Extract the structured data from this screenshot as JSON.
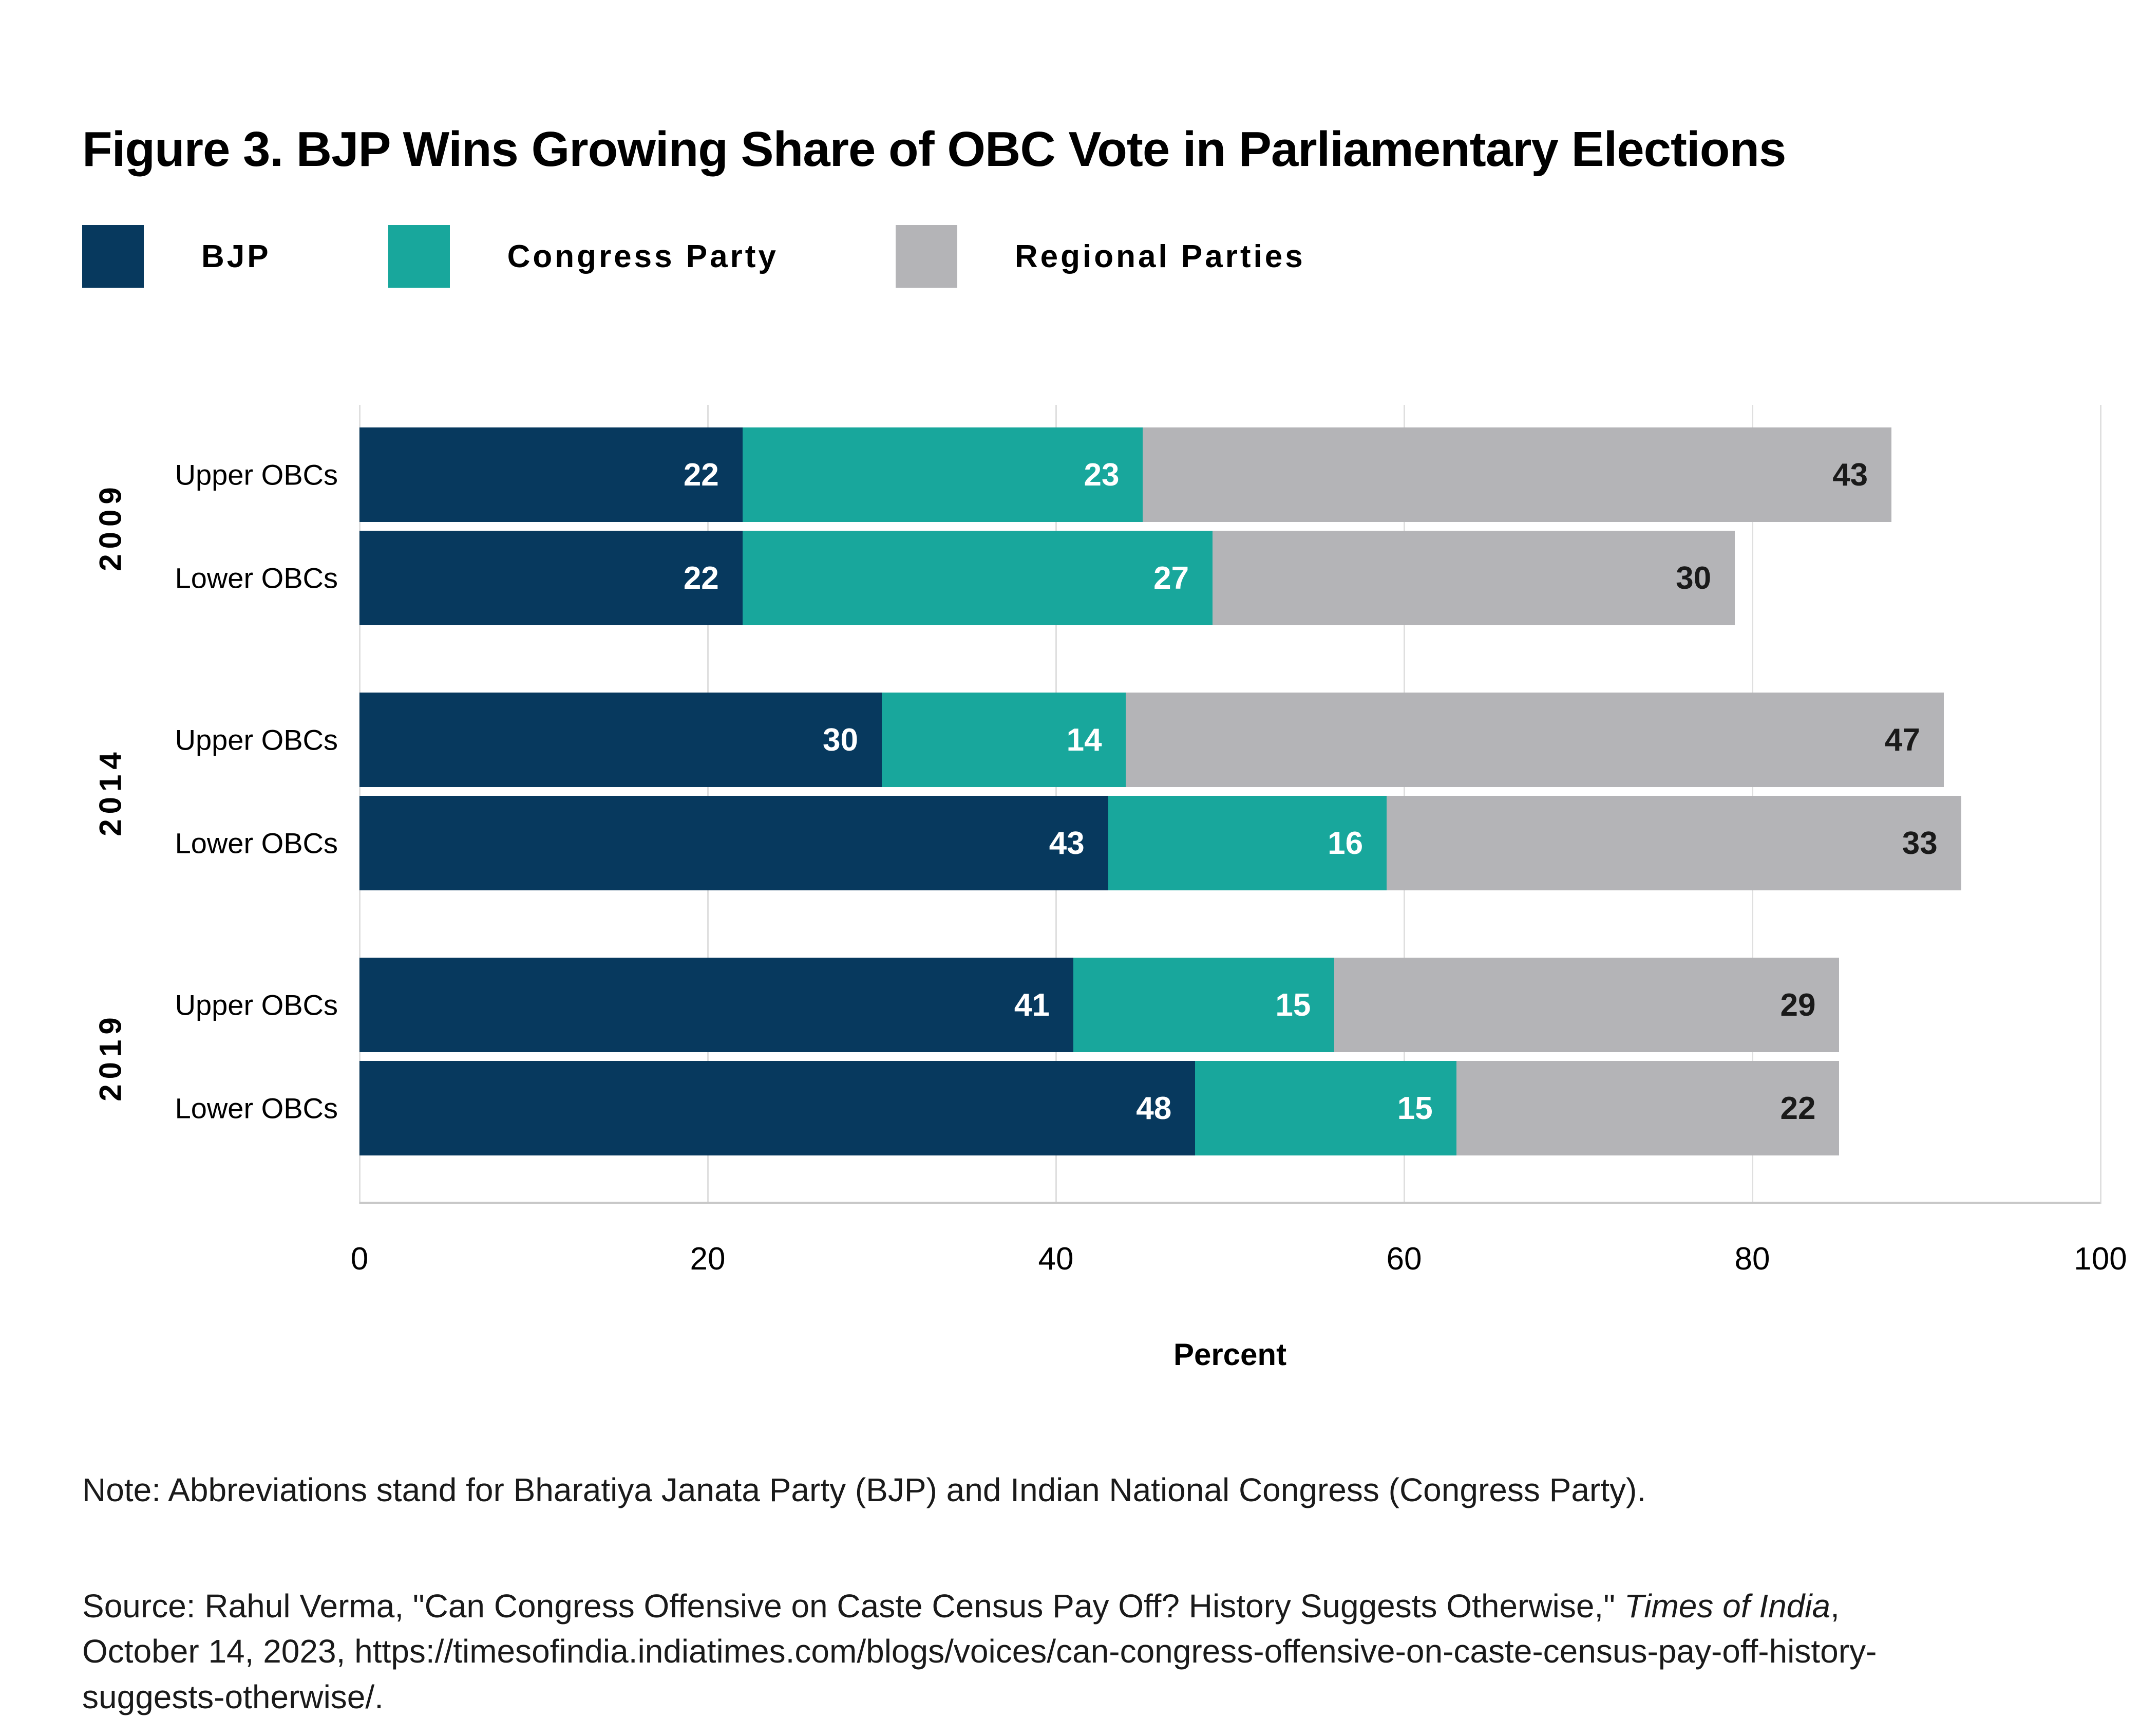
{
  "title": "Figure 3. BJP Wins Growing Share of OBC Vote in Parliamentary Elections",
  "legend": [
    {
      "label": "BJP",
      "color": "#07395E"
    },
    {
      "label": "Congress Party",
      "color": "#18A79C"
    },
    {
      "label": "Regional Parties",
      "color": "#B4B4B7"
    }
  ],
  "chart_data": {
    "type": "bar",
    "orientation": "horizontal",
    "stacked": true,
    "title": "Figure 3. BJP Wins Growing Share of OBC Vote in Parliamentary Elections",
    "xlabel": "Percent",
    "xlim": [
      0,
      100
    ],
    "xticks": [
      0,
      20,
      40,
      60,
      80,
      100
    ],
    "grid": true,
    "series": [
      {
        "name": "BJP",
        "color": "#07395E",
        "label_color": "#FFFFFF"
      },
      {
        "name": "Congress Party",
        "color": "#18A79C",
        "label_color": "#FFFFFF"
      },
      {
        "name": "Regional Parties",
        "color": "#B4B4B7",
        "label_color": "#1A1A1A"
      }
    ],
    "groups": [
      {
        "year": "2009",
        "rows": [
          {
            "label": "Upper OBCs",
            "values": [
              22,
              23,
              43
            ]
          },
          {
            "label": "Lower OBCs",
            "values": [
              22,
              27,
              30
            ]
          }
        ]
      },
      {
        "year": "2014",
        "rows": [
          {
            "label": "Upper OBCs",
            "values": [
              30,
              14,
              47
            ]
          },
          {
            "label": "Lower OBCs",
            "values": [
              43,
              16,
              33
            ]
          }
        ]
      },
      {
        "year": "2019",
        "rows": [
          {
            "label": "Upper OBCs",
            "values": [
              41,
              15,
              29
            ]
          },
          {
            "label": "Lower OBCs",
            "values": [
              48,
              15,
              22
            ]
          }
        ]
      }
    ],
    "colors": {
      "gridline": "#DFDFDF",
      "axis_line": "#C8C8C8",
      "background": "#FFFFFF"
    }
  },
  "note": "Note: Abbreviations stand for Bharatiya Janata Party (BJP) and Indian National Congress (Congress Party).",
  "source": {
    "prefix": "Source: Rahul Verma, \"Can Congress Offensive on Caste Census Pay Off? History Suggests Otherwise,\" ",
    "italic": "Times of India",
    "suffix": ", October 14, 2023, https://timesofindia.indiatimes.com/blogs/voices/can-congress-offensive-on-caste-census-pay-off-history-suggests-otherwise/."
  }
}
